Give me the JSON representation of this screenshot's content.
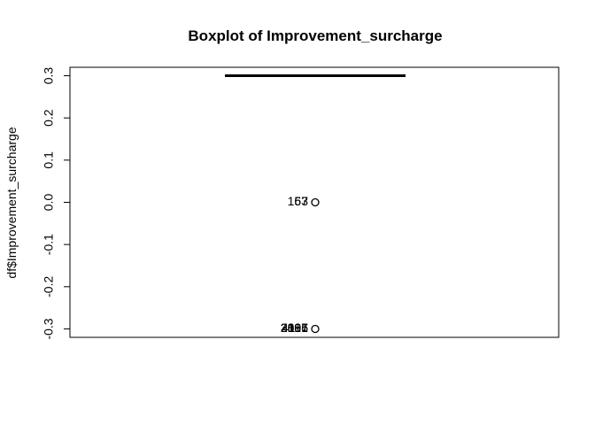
{
  "chart_data": {
    "type": "boxplot",
    "title": "Boxplot of Improvement_surcharge",
    "xlabel": "",
    "ylabel": "df$Improvement_surcharge",
    "ylim": [
      -0.32,
      0.32
    ],
    "y_ticks": [
      -0.3,
      -0.2,
      -0.1,
      0.0,
      0.1,
      0.2,
      0.3
    ],
    "y_tick_labels": [
      "-0.3",
      "-0.2",
      "-0.1",
      "0.0",
      "0.1",
      "0.2",
      "0.3"
    ],
    "grid": false,
    "box": {
      "q1": 0.3,
      "median": 0.3,
      "q3": 0.3,
      "whisker_low": 0.3,
      "whisker_high": 0.3
    },
    "outliers": [
      {
        "value": 0.0,
        "labels": [
          "157",
          "63"
        ]
      },
      {
        "value": -0.3,
        "labels": [
          "2805",
          "3091",
          "2186",
          "4117"
        ]
      }
    ]
  }
}
